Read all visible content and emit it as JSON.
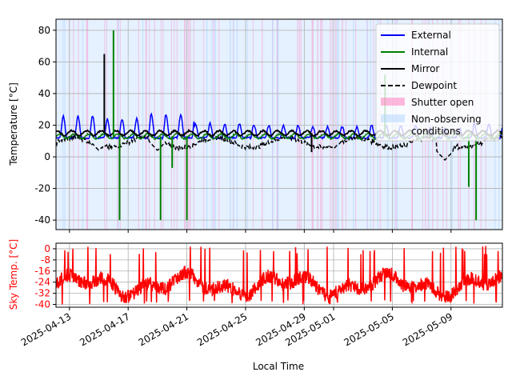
{
  "colors": {
    "external": "#0000ff",
    "internal": "#008000",
    "mirror": "#000000",
    "dewpoint": "#000000",
    "shutter_open": "#ff69b4",
    "non_observing": "#a8d0ff",
    "sky": "#ff0000",
    "grid": "#b0b0b0"
  },
  "chart_data": [
    {
      "type": "line",
      "ylabel": "Temperature [°C]",
      "ylim": [
        -46,
        87
      ],
      "yticks": [
        -40,
        -20,
        0,
        20,
        40,
        60,
        80
      ],
      "x_range": [
        "2025-04-12T02:00",
        "2025-05-12T12:00"
      ],
      "grid": true,
      "legend": {
        "position": "top-right",
        "entries": [
          "External",
          "Internal",
          "Mirror",
          "Dewpoint",
          "Shutter open",
          "Non-observing conditions"
        ]
      },
      "series": [
        {
          "name": "External",
          "style": "solid",
          "baseline": 12,
          "daily_peak": 25,
          "points": [
            [
              "2025-04-13T12:00",
              26
            ],
            [
              "2025-04-16T12:00",
              24
            ],
            [
              "2025-04-19T12:00",
              27
            ],
            [
              "2025-04-23T12:00",
              21
            ],
            [
              "2025-04-27T12:00",
              20
            ],
            [
              "2025-05-01T12:00",
              19
            ],
            [
              "2025-05-05T12:00",
              20
            ],
            [
              "2025-05-09T12:00",
              18
            ],
            [
              "2025-05-11T12:00",
              21
            ]
          ]
        },
        {
          "name": "Internal",
          "style": "solid",
          "baseline": 13,
          "spikes": [
            [
              "2025-04-16T00:00",
              80
            ],
            [
              "2025-04-16T10:00",
              -40
            ],
            [
              "2025-04-19T05:00",
              -40
            ],
            [
              "2025-04-20T00:00",
              -7
            ],
            [
              "2025-04-21T00:00",
              -40
            ],
            [
              "2025-05-04T12:00",
              52
            ],
            [
              "2025-05-10T05:00",
              -19
            ],
            [
              "2025-05-10T17:00",
              -40
            ]
          ]
        },
        {
          "name": "Mirror",
          "style": "solid",
          "baseline": 15,
          "spikes": [
            [
              "2025-04-15T09:00",
              65
            ],
            [
              "2025-04-29T12:00",
              3
            ]
          ]
        },
        {
          "name": "Dewpoint",
          "style": "dashed",
          "baseline": 9,
          "dips": [
            [
              "2025-04-15T00:00",
              4
            ],
            [
              "2025-04-19T00:00",
              4
            ],
            [
              "2025-05-01T00:00",
              5
            ],
            [
              "2025-05-08T14:00",
              -2
            ]
          ]
        }
      ],
      "shaded_regions": {
        "non_observing": [
          [
            "2025-04-12T02:00",
            "2025-05-12T12:00"
          ]
        ],
        "shutter_open_nights": "nightly"
      }
    },
    {
      "type": "line",
      "ylabel": "Sky Temp. [°C]",
      "xlabel": "Local Time",
      "ylim": [
        -42,
        4
      ],
      "yticks": [
        0,
        -8,
        -16,
        -24,
        -32,
        -40
      ],
      "x_range": [
        "2025-04-12T02:00",
        "2025-05-12T12:00"
      ],
      "grid": true,
      "series": [
        {
          "name": "Sky",
          "baseline": -26,
          "range": [
            -40,
            2
          ]
        }
      ]
    }
  ],
  "xticks": [
    "2025-04-13",
    "2025-04-17",
    "2025-04-21",
    "2025-04-25",
    "2025-04-29",
    "2025-05-01",
    "2025-05-05",
    "2025-05-09"
  ]
}
